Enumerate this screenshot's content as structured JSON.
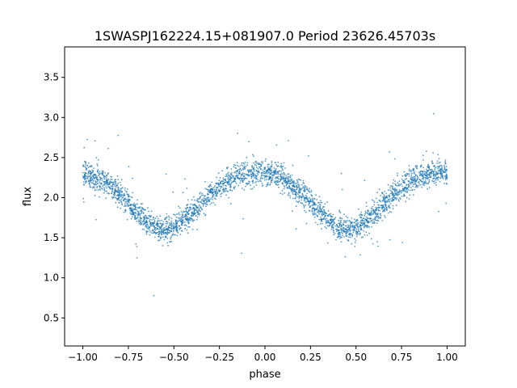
{
  "chart_data": {
    "type": "scatter",
    "title": "1SWASPJ162224.15+081907.0 Period 23626.45703s",
    "xlabel": "phase",
    "ylabel": "flux",
    "xlim": [
      -1.1,
      1.1
    ],
    "ylim": [
      0.15,
      3.88
    ],
    "x_ticks": [
      -1.0,
      -0.75,
      -0.5,
      -0.25,
      0.0,
      0.25,
      0.5,
      0.75,
      1.0
    ],
    "x_tick_labels": [
      "−1.00",
      "−0.75",
      "−0.50",
      "−0.25",
      "0.00",
      "0.25",
      "0.50",
      "0.75",
      "1.00"
    ],
    "y_ticks": [
      0.5,
      1.0,
      1.5,
      2.0,
      2.5,
      3.0,
      3.5
    ],
    "y_tick_labels": [
      "0.5",
      "1.0",
      "1.5",
      "2.0",
      "2.5",
      "3.0",
      "3.5"
    ],
    "grid": false,
    "marker_color": "#1f77b4",
    "series": [
      {
        "x": [
          -1.0,
          -0.9,
          -0.8,
          -0.7,
          -0.6,
          -0.55,
          -0.5,
          -0.4,
          -0.3,
          -0.2,
          -0.1,
          0.0,
          0.1,
          0.2,
          0.3,
          0.4,
          0.45,
          0.5,
          0.6,
          0.7,
          0.8,
          0.9,
          1.0
        ],
        "y": [
          2.3,
          2.23,
          2.05,
          1.8,
          1.63,
          1.6,
          1.62,
          1.82,
          2.05,
          2.22,
          2.3,
          2.32,
          2.25,
          2.05,
          1.82,
          1.63,
          1.6,
          1.62,
          1.8,
          2.03,
          2.22,
          2.3,
          2.32
        ]
      }
    ]
  }
}
